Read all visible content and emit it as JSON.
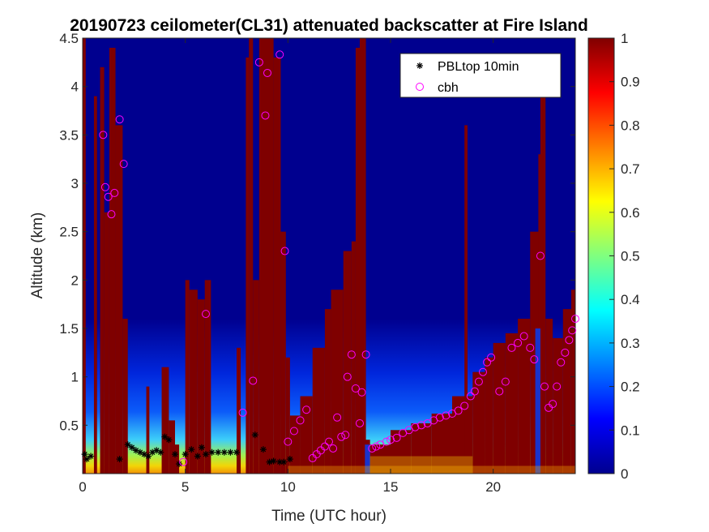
{
  "chart_data": {
    "type": "heatmap",
    "title": "20190723 ceilometer(CL31) attenuated backscatter at Fire Island",
    "xlabel": "Time (UTC hour)",
    "ylabel": "Altitude (km)",
    "xlim": [
      0,
      24
    ],
    "ylim": [
      0,
      4.5
    ],
    "xticks": [
      "0",
      "5",
      "10",
      "15",
      "20"
    ],
    "xtick_values": [
      0,
      5,
      10,
      15,
      20
    ],
    "yticks": [
      "0.5",
      "1",
      "1.5",
      "2",
      "2.5",
      "3",
      "3.5",
      "4",
      "4.5"
    ],
    "ytick_values": [
      0.5,
      1,
      1.5,
      2,
      2.5,
      3,
      3.5,
      4,
      4.5
    ],
    "colorbar": {
      "colormap": "jet",
      "limits": [
        0,
        1
      ],
      "ticks": [
        "0",
        "0.1",
        "0.2",
        "0.3",
        "0.4",
        "0.5",
        "0.6",
        "0.7",
        "0.8",
        "0.9",
        "1"
      ],
      "tick_values": [
        0,
        0.1,
        0.2,
        0.3,
        0.4,
        0.5,
        0.6,
        0.7,
        0.8,
        0.9,
        1
      ]
    },
    "grid": false,
    "legend_placement": "top-right",
    "series": [
      {
        "name": "PBLtop 10min",
        "marker": "asterisk",
        "color": "#000000",
        "points": [
          [
            0.1,
            0.2
          ],
          [
            0.2,
            0.15
          ],
          [
            0.4,
            0.18
          ],
          [
            1.8,
            0.15
          ],
          [
            2.2,
            0.3
          ],
          [
            2.4,
            0.27
          ],
          [
            2.6,
            0.24
          ],
          [
            2.8,
            0.22
          ],
          [
            3.0,
            0.2
          ],
          [
            3.2,
            0.18
          ],
          [
            3.4,
            0.22
          ],
          [
            3.6,
            0.24
          ],
          [
            3.8,
            0.22
          ],
          [
            4.0,
            0.38
          ],
          [
            4.2,
            0.35
          ],
          [
            4.5,
            0.2
          ],
          [
            4.7,
            0.1
          ],
          [
            5.0,
            0.2
          ],
          [
            5.3,
            0.25
          ],
          [
            5.6,
            0.18
          ],
          [
            5.8,
            0.27
          ],
          [
            6.0,
            0.2
          ],
          [
            6.3,
            0.22
          ],
          [
            6.6,
            0.22
          ],
          [
            6.9,
            0.22
          ],
          [
            7.2,
            0.22
          ],
          [
            7.5,
            0.22
          ],
          [
            8.4,
            0.4
          ],
          [
            8.8,
            0.25
          ],
          [
            9.1,
            0.12
          ],
          [
            9.3,
            0.13
          ],
          [
            9.6,
            0.12
          ],
          [
            9.8,
            0.12
          ],
          [
            10.1,
            0.15
          ]
        ]
      },
      {
        "name": "cbh",
        "marker": "circle",
        "color": "#ff00ff",
        "points": [
          [
            1.0,
            3.5
          ],
          [
            1.1,
            2.96
          ],
          [
            1.25,
            2.86
          ],
          [
            1.4,
            2.68
          ],
          [
            1.55,
            2.9
          ],
          [
            1.8,
            3.66
          ],
          [
            2.0,
            3.2
          ],
          [
            4.9,
            0.12
          ],
          [
            6.0,
            1.65
          ],
          [
            7.8,
            0.63
          ],
          [
            8.3,
            0.96
          ],
          [
            8.6,
            4.25
          ],
          [
            8.9,
            3.7
          ],
          [
            9.0,
            4.14
          ],
          [
            9.6,
            4.33
          ],
          [
            9.85,
            2.3
          ],
          [
            10.0,
            0.33
          ],
          [
            10.3,
            0.44
          ],
          [
            10.6,
            0.55
          ],
          [
            10.9,
            0.66
          ],
          [
            11.2,
            0.16
          ],
          [
            11.4,
            0.2
          ],
          [
            11.6,
            0.24
          ],
          [
            11.8,
            0.28
          ],
          [
            12.0,
            0.33
          ],
          [
            12.2,
            0.26
          ],
          [
            12.4,
            0.58
          ],
          [
            12.6,
            0.38
          ],
          [
            12.8,
            0.4
          ],
          [
            12.9,
            1.0
          ],
          [
            13.1,
            1.23
          ],
          [
            13.3,
            0.88
          ],
          [
            13.5,
            0.52
          ],
          [
            13.6,
            0.84
          ],
          [
            13.8,
            1.23
          ],
          [
            14.1,
            0.26
          ],
          [
            14.3,
            0.28
          ],
          [
            14.5,
            0.3
          ],
          [
            14.8,
            0.33
          ],
          [
            15.0,
            0.35
          ],
          [
            15.3,
            0.37
          ],
          [
            15.6,
            0.42
          ],
          [
            15.9,
            0.45
          ],
          [
            16.2,
            0.48
          ],
          [
            16.5,
            0.5
          ],
          [
            16.8,
            0.52
          ],
          [
            17.1,
            0.55
          ],
          [
            17.4,
            0.58
          ],
          [
            17.7,
            0.6
          ],
          [
            18.0,
            0.62
          ],
          [
            18.3,
            0.65
          ],
          [
            18.6,
            0.7
          ],
          [
            18.9,
            0.8
          ],
          [
            19.1,
            0.85
          ],
          [
            19.3,
            0.95
          ],
          [
            19.5,
            1.05
          ],
          [
            19.7,
            1.15
          ],
          [
            19.9,
            1.2
          ],
          [
            20.3,
            0.85
          ],
          [
            20.6,
            0.95
          ],
          [
            20.9,
            1.3
          ],
          [
            21.2,
            1.35
          ],
          [
            21.5,
            1.42
          ],
          [
            21.8,
            1.3
          ],
          [
            22.0,
            1.18
          ],
          [
            22.3,
            2.25
          ],
          [
            22.5,
            0.9
          ],
          [
            22.7,
            0.68
          ],
          [
            22.9,
            0.72
          ],
          [
            23.1,
            0.9
          ],
          [
            23.3,
            1.15
          ],
          [
            23.5,
            1.25
          ],
          [
            23.7,
            1.38
          ],
          [
            23.85,
            1.48
          ],
          [
            24.0,
            1.6
          ]
        ]
      }
    ]
  }
}
